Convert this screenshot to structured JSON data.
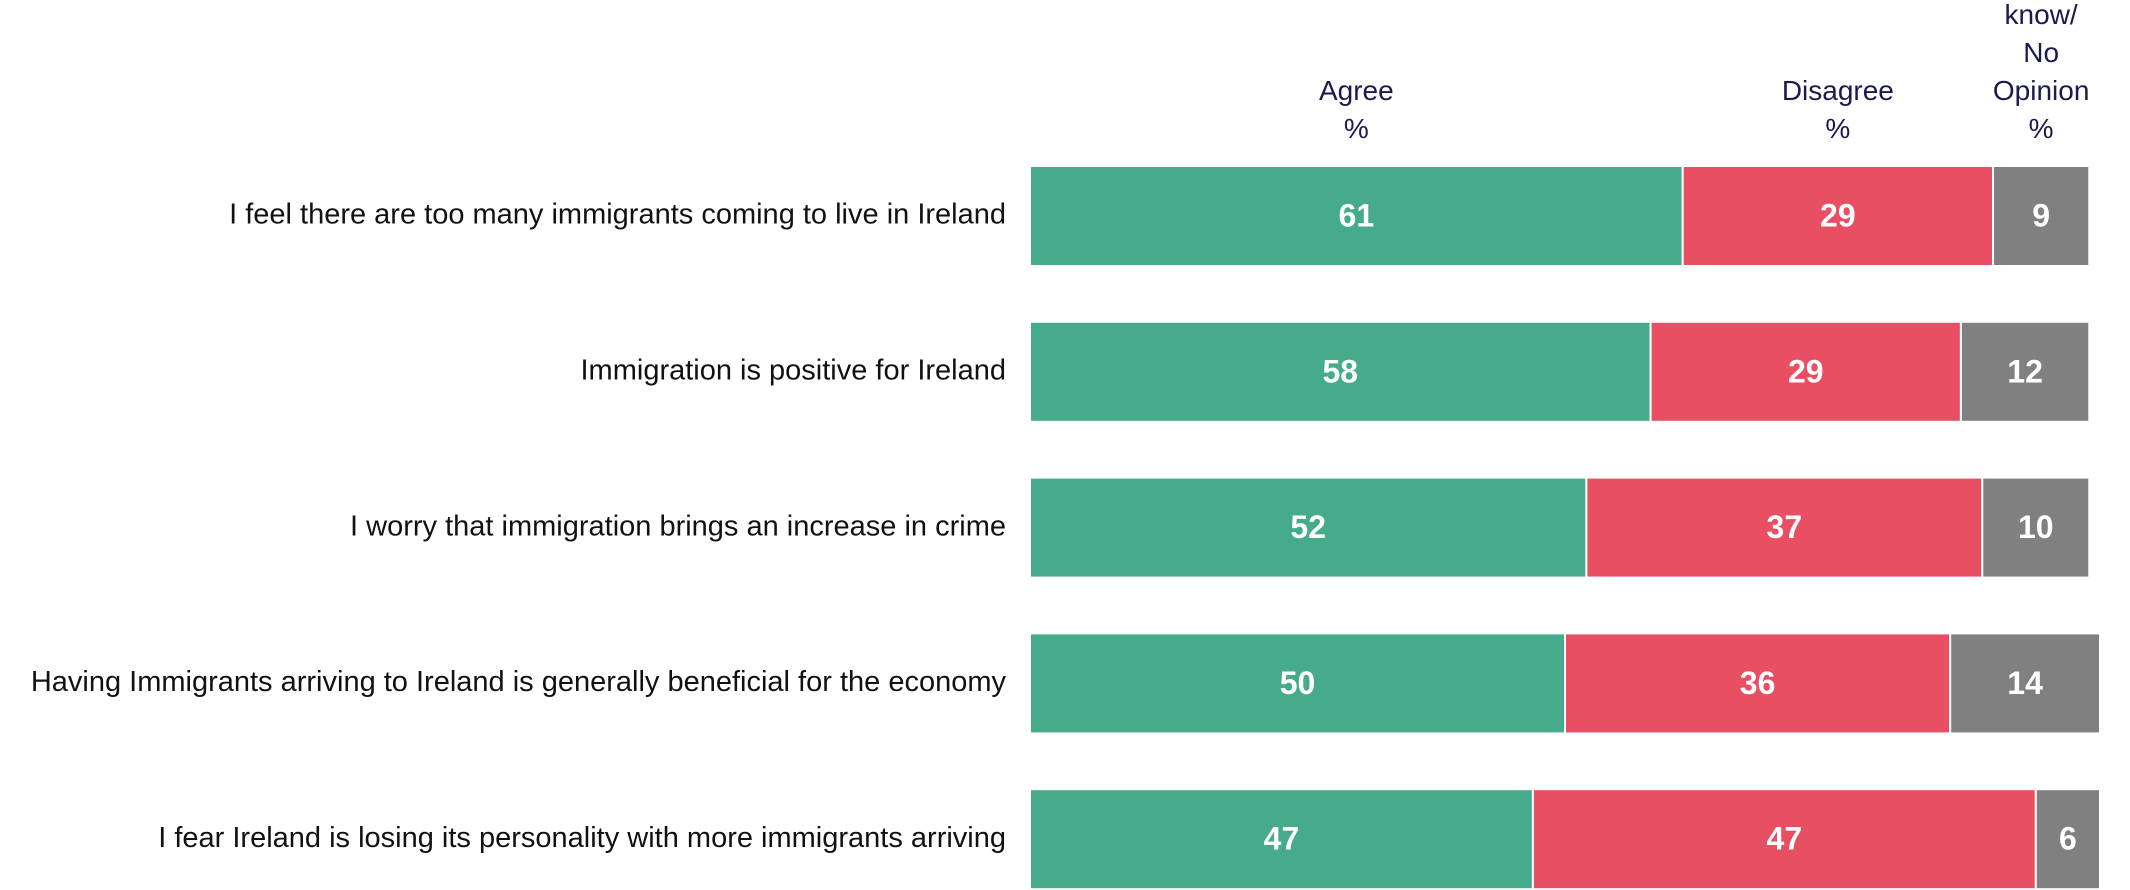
{
  "chart_data": {
    "type": "stacked_bar_horizontal",
    "categories": [
      "I feel there are too many immigrants coming to live in Ireland",
      "Immigration is positive for Ireland",
      "I worry that immigration brings an increase in crime",
      "Having Immigrants arriving to Ireland is generally beneficial for the economy",
      "I fear Ireland is losing its personality with more immigrants arriving"
    ],
    "unit": "%",
    "xlim": [
      0,
      100
    ],
    "series": [
      {
        "name": "Agree",
        "color": "#45ab8a",
        "values": [
          61,
          58,
          52,
          50,
          47
        ]
      },
      {
        "name": "Disagree",
        "color": "#e84f62",
        "values": [
          29,
          29,
          37,
          36,
          47
        ]
      },
      {
        "name": "Don’t\nknow/\nNo Opinion",
        "color": "#808080",
        "values": [
          9,
          12,
          10,
          14,
          6
        ]
      }
    ]
  }
}
